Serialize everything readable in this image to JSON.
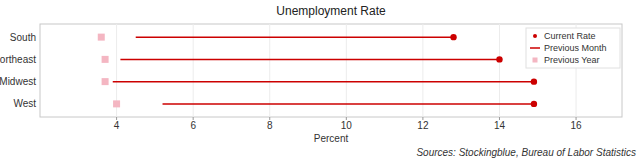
{
  "chart_data": {
    "type": "range_dot",
    "title": "Unemployment Rate",
    "x_label": "Percent",
    "source": "Sources: Stockingblue, Bureau of Labor Statistics",
    "orientation": "horizontal",
    "categories": [
      "South",
      "Northeast",
      "Midwest",
      "West"
    ],
    "series": [
      {
        "name": "Current Rate",
        "color": "#cc0000",
        "marker": "circle",
        "values": [
          12.8,
          14.0,
          14.9,
          14.9
        ]
      },
      {
        "name": "Previous Month",
        "color": "#cc0000",
        "line_style": "solid",
        "values": [
          4.5,
          4.1,
          3.9,
          5.2
        ]
      },
      {
        "name": "Previous Year",
        "color": "#f4b6c2",
        "marker": "square",
        "values": [
          3.6,
          3.7,
          3.7,
          4.0
        ]
      }
    ],
    "xlim": [
      2,
      17.2
    ],
    "xticks": [
      4,
      6,
      8,
      10,
      12,
      14,
      16
    ],
    "grid": true,
    "legend": "upper right"
  }
}
